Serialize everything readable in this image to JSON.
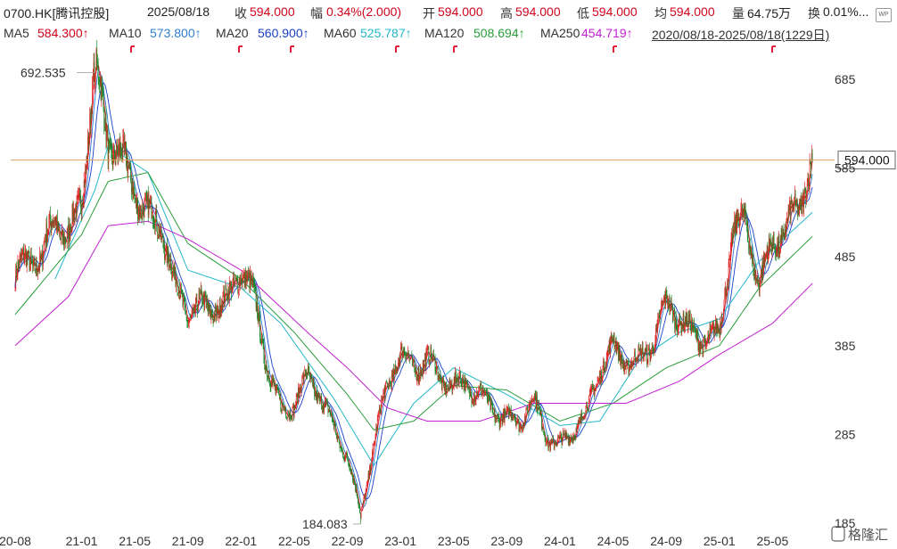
{
  "header": {
    "symbol": "0700.HK[腾讯控股]",
    "date": "2025/08/18",
    "close_label": "收",
    "close_value": "594.000",
    "change_label": "幅",
    "change_value": "0.34%(2.000)",
    "open_label": "开",
    "open_value": "594.000",
    "high_label": "高",
    "high_value": "594.000",
    "low_label": "低",
    "low_value": "594.000",
    "avg_label": "均",
    "avg_value": "594.000",
    "volume_label": "量",
    "volume_value": "64.75万",
    "turnover_label": "换",
    "turnover_value": "0.01%..."
  },
  "ma_legend": [
    {
      "name": "MA5",
      "value": "584.300↑",
      "color": "#d0021b"
    },
    {
      "name": "MA10",
      "value": "573.800↑",
      "color": "#2f7fd0"
    },
    {
      "name": "MA20",
      "value": "560.900↑",
      "color": "#1a3fc8"
    },
    {
      "name": "MA60",
      "value": "525.787↑",
      "color": "#22b8c8"
    },
    {
      "name": "MA120",
      "value": "508.694↑",
      "color": "#2a9d3a"
    },
    {
      "name": "MA250",
      "value": "454.719↑",
      "color": "#c21fd1"
    }
  ],
  "date_range": "2020/08/18-2025/08/18(1229日)",
  "icons": {
    "corner": "wp-icon",
    "lock": "lock-icon"
  },
  "colors": {
    "up": "#e02020",
    "down": "#148a28",
    "price_line": "#e0a060"
  },
  "chart_data": {
    "type": "line",
    "subtype": "candlestick",
    "x_ticks": [
      "20-08",
      "21-01",
      "21-05",
      "21-09",
      "22-01",
      "22-05",
      "22-09",
      "23-01",
      "23-05",
      "23-09",
      "24-01",
      "24-05",
      "24-09",
      "25-01",
      "25-05"
    ],
    "y_ticks": [
      685,
      585,
      485,
      385,
      285,
      185
    ],
    "ylim": [
      172,
      712
    ],
    "current_price": "594.000",
    "max_label": "692.535",
    "min_label": "184.083",
    "max_point": {
      "x": "21-02",
      "y": 692.535
    },
    "min_point": {
      "x": "22-10",
      "y": 184.083
    },
    "price_anchors": [
      [
        "20-08",
        462
      ],
      [
        "20-09",
        470
      ],
      [
        "20-10",
        470
      ],
      [
        "20-11",
        540
      ],
      [
        "20-12",
        520
      ],
      [
        "21-01",
        560
      ],
      [
        "21-02",
        680
      ],
      [
        "21-03",
        600
      ],
      [
        "21-04",
        600
      ],
      [
        "21-05",
        580
      ],
      [
        "21-06",
        540
      ],
      [
        "21-07",
        510
      ],
      [
        "21-08",
        440
      ],
      [
        "21-09",
        420
      ],
      [
        "21-10",
        440
      ],
      [
        "21-11",
        440
      ],
      [
        "21-12",
        430
      ],
      [
        "22-01",
        460
      ],
      [
        "22-02",
        430
      ],
      [
        "22-03",
        370
      ],
      [
        "22-04",
        320
      ],
      [
        "22-05",
        320
      ],
      [
        "22-06",
        340
      ],
      [
        "22-07",
        320
      ],
      [
        "22-08",
        295
      ],
      [
        "22-09",
        270
      ],
      [
        "22-10",
        195
      ],
      [
        "22-11",
        270
      ],
      [
        "22-12",
        330
      ],
      [
        "23-01",
        380
      ],
      [
        "23-02",
        370
      ],
      [
        "23-03",
        380
      ],
      [
        "23-04",
        340
      ],
      [
        "23-05",
        330
      ],
      [
        "23-06",
        340
      ],
      [
        "23-07",
        340
      ],
      [
        "23-08",
        320
      ],
      [
        "23-09",
        300
      ],
      [
        "23-10",
        290
      ],
      [
        "23-11",
        320
      ],
      [
        "23-12",
        290
      ],
      [
        "24-01",
        280
      ],
      [
        "24-02",
        290
      ],
      [
        "24-03",
        300
      ],
      [
        "24-04",
        350
      ],
      [
        "24-05",
        390
      ],
      [
        "24-06",
        380
      ],
      [
        "24-07",
        370
      ],
      [
        "24-08",
        380
      ],
      [
        "24-09",
        420
      ],
      [
        "24-10",
        420
      ],
      [
        "24-11",
        410
      ],
      [
        "24-12",
        400
      ],
      [
        "25-01",
        390
      ],
      [
        "25-02",
        500
      ],
      [
        "25-03",
        520
      ],
      [
        "25-04",
        470
      ],
      [
        "25-05",
        510
      ],
      [
        "25-06",
        515
      ],
      [
        "25-07",
        520
      ],
      [
        "25-08",
        594
      ]
    ],
    "moving_averages": [
      {
        "name": "MA60",
        "anchors": [
          [
            "20-11",
            460
          ],
          [
            "21-02",
            560
          ],
          [
            "21-03",
            610
          ],
          [
            "21-06",
            580
          ],
          [
            "21-09",
            470
          ],
          [
            "22-01",
            450
          ],
          [
            "22-04",
            410
          ],
          [
            "22-08",
            325
          ],
          [
            "22-11",
            250
          ],
          [
            "23-02",
            320
          ],
          [
            "23-05",
            360
          ],
          [
            "23-09",
            330
          ],
          [
            "24-01",
            295
          ],
          [
            "24-04",
            300
          ],
          [
            "24-07",
            370
          ],
          [
            "24-10",
            400
          ],
          [
            "25-01",
            415
          ],
          [
            "25-04",
            480
          ],
          [
            "25-08",
            535
          ]
        ]
      },
      {
        "name": "MA120",
        "anchors": [
          [
            "20-08",
            420
          ],
          [
            "21-01",
            510
          ],
          [
            "21-03",
            570
          ],
          [
            "21-06",
            580
          ],
          [
            "21-09",
            500
          ],
          [
            "22-01",
            460
          ],
          [
            "22-05",
            400
          ],
          [
            "22-09",
            330
          ],
          [
            "22-11",
            290
          ],
          [
            "23-02",
            300
          ],
          [
            "23-05",
            340
          ],
          [
            "23-09",
            335
          ],
          [
            "24-01",
            300
          ],
          [
            "24-05",
            320
          ],
          [
            "24-09",
            360
          ],
          [
            "25-01",
            385
          ],
          [
            "25-04",
            450
          ],
          [
            "25-08",
            508
          ]
        ]
      },
      {
        "name": "MA250",
        "anchors": [
          [
            "20-08",
            385
          ],
          [
            "20-12",
            440
          ],
          [
            "21-03",
            520
          ],
          [
            "21-06",
            525
          ],
          [
            "21-09",
            505
          ],
          [
            "22-01",
            470
          ],
          [
            "22-06",
            400
          ],
          [
            "22-09",
            360
          ],
          [
            "22-12",
            315
          ],
          [
            "23-03",
            300
          ],
          [
            "23-07",
            300
          ],
          [
            "23-11",
            320
          ],
          [
            "24-03",
            320
          ],
          [
            "24-06",
            320
          ],
          [
            "24-10",
            345
          ],
          [
            "25-01",
            375
          ],
          [
            "25-05",
            410
          ],
          [
            "25-08",
            455
          ]
        ]
      }
    ],
    "grid": false
  },
  "watermark": "格隆汇"
}
